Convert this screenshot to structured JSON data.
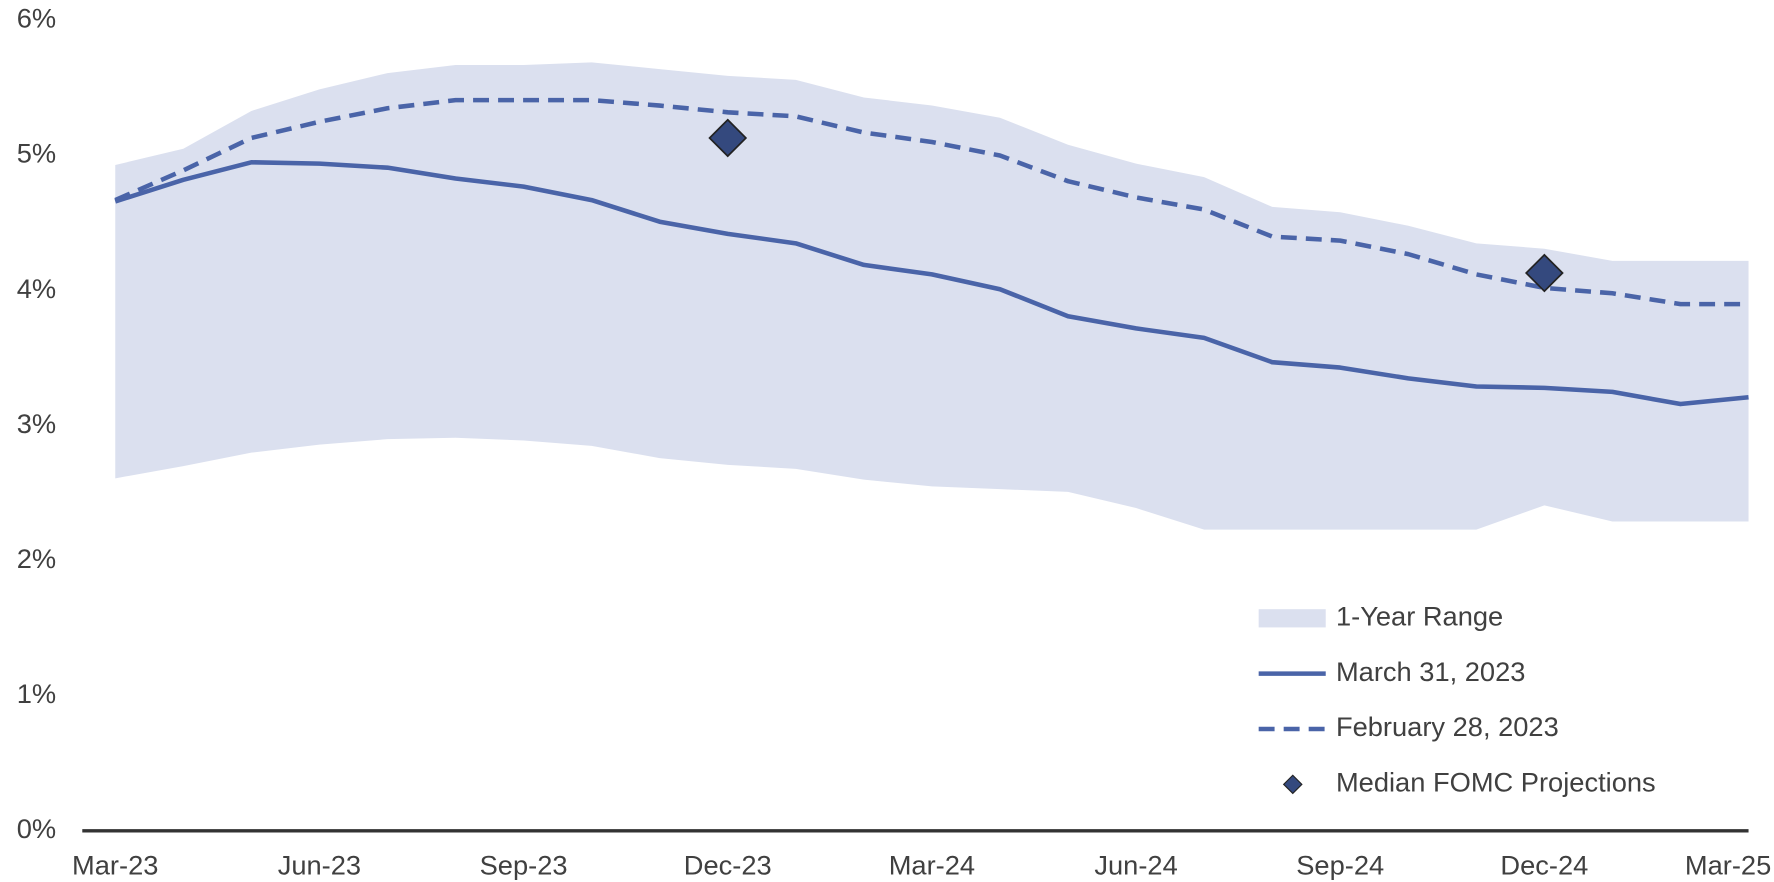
{
  "chart_data": {
    "type": "line",
    "categories": [
      "Mar-23",
      null,
      null,
      "Jun-23",
      null,
      null,
      "Sep-23",
      null,
      null,
      "Dec-23",
      null,
      null,
      "Mar-24",
      null,
      null,
      "Jun-24",
      null,
      null,
      "Sep-24",
      null,
      null,
      "Dec-24",
      null,
      null,
      "Mar-25"
    ],
    "ylim": [
      0,
      6
    ],
    "yticks": [
      {
        "value": 0,
        "label": "0%"
      },
      {
        "value": 1,
        "label": "1%"
      },
      {
        "value": 2,
        "label": "2%"
      },
      {
        "value": 3,
        "label": "3%"
      },
      {
        "value": 4,
        "label": "4%"
      },
      {
        "value": 5,
        "label": "5%"
      },
      {
        "value": 6,
        "label": "6%"
      }
    ],
    "grid": false,
    "legend": "lower right",
    "series": [
      {
        "name": "1-Year Range",
        "kind": "band",
        "color": "#dbe0ef",
        "lower": [
          2.61,
          2.7,
          2.8,
          2.86,
          2.9,
          2.91,
          2.89,
          2.85,
          2.76,
          2.71,
          2.68,
          2.6,
          2.55,
          2.53,
          2.51,
          2.39,
          2.23,
          2.23,
          2.23,
          2.23,
          2.23,
          2.41,
          2.29,
          2.29,
          2.29
        ],
        "upper": [
          4.93,
          5.05,
          5.33,
          5.49,
          5.61,
          5.67,
          5.67,
          5.69,
          5.64,
          5.59,
          5.56,
          5.43,
          5.37,
          5.28,
          5.08,
          4.94,
          4.84,
          4.62,
          4.58,
          4.48,
          4.35,
          4.31,
          4.22,
          4.22,
          4.22
        ]
      },
      {
        "name": "March 31, 2023",
        "kind": "line",
        "dashed": false,
        "color": "#4a64a8",
        "values": [
          4.66,
          4.82,
          4.95,
          4.94,
          4.91,
          4.83,
          4.77,
          4.67,
          4.51,
          4.42,
          4.35,
          4.19,
          4.12,
          4.01,
          3.81,
          3.72,
          3.65,
          3.47,
          3.43,
          3.35,
          3.29,
          3.28,
          3.25,
          3.16,
          3.21
        ]
      },
      {
        "name": "February 28, 2023",
        "kind": "line",
        "dashed": true,
        "color": "#4a64a8",
        "values": [
          4.67,
          4.89,
          5.13,
          5.25,
          5.35,
          5.41,
          5.41,
          5.41,
          5.37,
          5.32,
          5.29,
          5.17,
          5.1,
          5.0,
          4.81,
          4.69,
          4.6,
          4.4,
          4.37,
          4.27,
          4.12,
          4.02,
          3.98,
          3.9,
          3.9
        ]
      },
      {
        "name": "Median FOMC Projections",
        "kind": "marker",
        "marker": "diamond",
        "color": "#34497e",
        "values": [
          null,
          null,
          null,
          null,
          null,
          null,
          null,
          null,
          null,
          5.13,
          null,
          null,
          null,
          null,
          null,
          null,
          null,
          null,
          null,
          null,
          null,
          4.13,
          null,
          null,
          null
        ]
      }
    ]
  }
}
